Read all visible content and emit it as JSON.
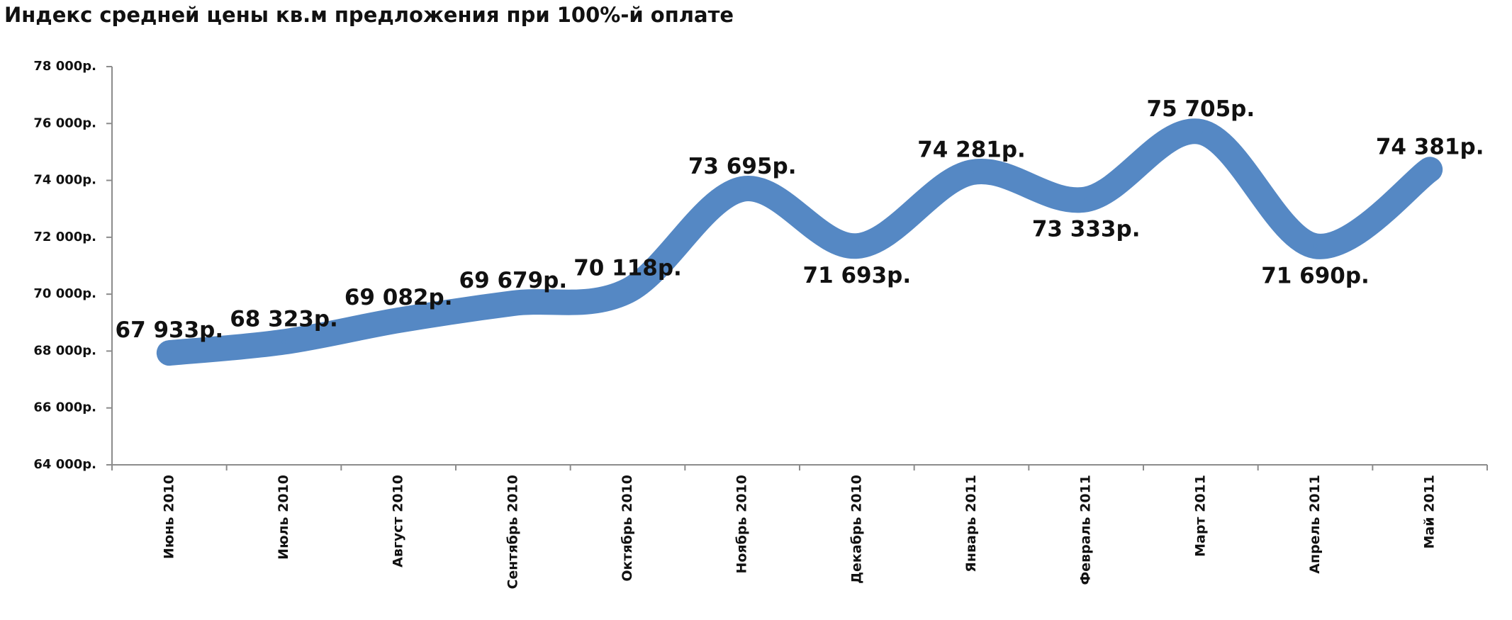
{
  "chart_data": {
    "type": "line",
    "title": "Индекс средней цены кв.м предложения при 100%-й оплате",
    "xlabel": "",
    "ylabel": "",
    "categories": [
      "Июнь 2010",
      "Июль 2010",
      "Август 2010",
      "Сентябрь 2010",
      "Октябрь 2010",
      "Ноябрь 2010",
      "Декабрь 2010",
      "Январь 2011",
      "Февраль 2011",
      "Март 2011",
      "Апрель 2011",
      "Май 2011"
    ],
    "values": [
      67933,
      68323,
      69082,
      69679,
      70118,
      73695,
      71693,
      74281,
      73333,
      75705,
      71690,
      74381
    ],
    "data_labels": [
      "67 933р.",
      "68 323р.",
      "69 082р.",
      "69 679р.",
      "70 118р.",
      "73 695р.",
      "71 693р.",
      "74 281р.",
      "73 333р.",
      "75 705р.",
      "71 690р.",
      "74 381р."
    ],
    "y_ticks": [
      64000,
      66000,
      68000,
      70000,
      72000,
      74000,
      76000,
      78000
    ],
    "y_tick_labels": [
      "64 000р.",
      "66 000р.",
      "68 000р.",
      "70 000р.",
      "72 000р.",
      "74 000р.",
      "76 000р.",
      "78 000р."
    ],
    "ylim": [
      64000,
      78000
    ],
    "grid": false,
    "legend": "none",
    "line_style": "smooth",
    "line_color": "#5588c4"
  }
}
